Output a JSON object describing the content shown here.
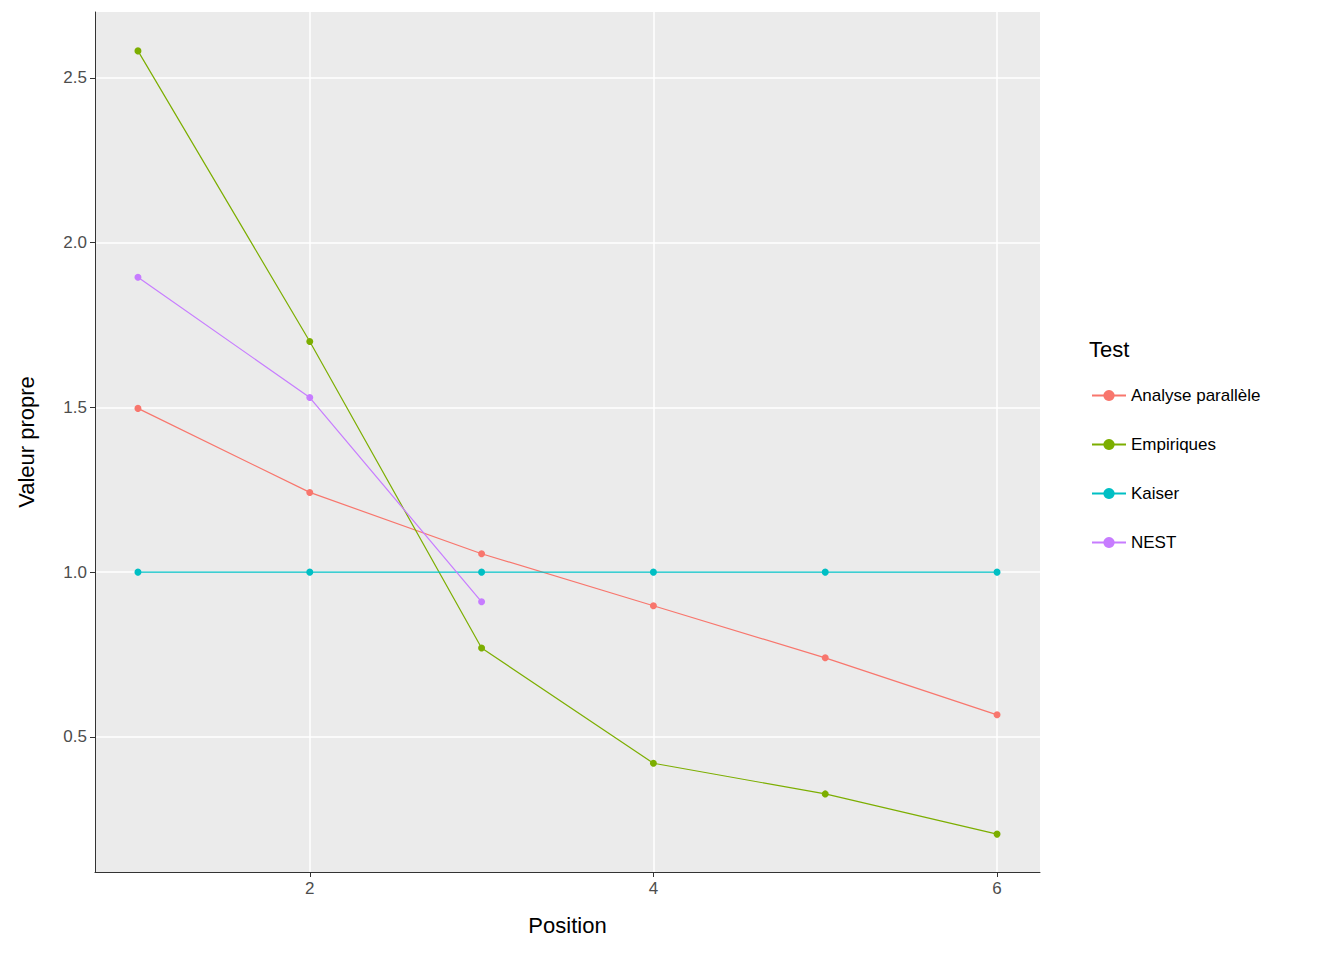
{
  "chart_data": {
    "type": "line",
    "x_label": "Position",
    "y_label": "Valeur propre",
    "legend_title": "Test",
    "legend": "right",
    "grid": true,
    "marker": "circle",
    "xlim": [
      0.75,
      6.25
    ],
    "xticks": [
      2,
      4,
      6
    ],
    "ylim": [
      0.09,
      2.7
    ],
    "yticks": [
      0.5,
      {
        "value": 1.0,
        "label": "1.0"
      },
      1.5,
      {
        "value": 2.0,
        "label": "2.0"
      },
      2.5
    ],
    "series": [
      {
        "name": "Analyse parallèle",
        "color": "#F8766D",
        "x": [
          1,
          2,
          3,
          4,
          5,
          6
        ],
        "values": [
          1.497,
          1.242,
          1.056,
          0.898,
          0.74,
          0.567
        ]
      },
      {
        "name": "Empiriques",
        "color": "#7CAE00",
        "x": [
          1,
          2,
          3,
          4,
          5,
          6
        ],
        "values": [
          2.582,
          1.7,
          0.77,
          0.42,
          0.327,
          0.205
        ]
      },
      {
        "name": "Kaiser",
        "color": "#00BFC4",
        "x": [
          1,
          2,
          3,
          4,
          5,
          6
        ],
        "values": [
          1,
          1,
          1,
          1,
          1,
          1
        ]
      },
      {
        "name": "NEST",
        "color": "#C77CFF",
        "x": [
          1,
          2,
          3
        ],
        "values": [
          1.895,
          1.53,
          0.91
        ]
      }
    ]
  }
}
